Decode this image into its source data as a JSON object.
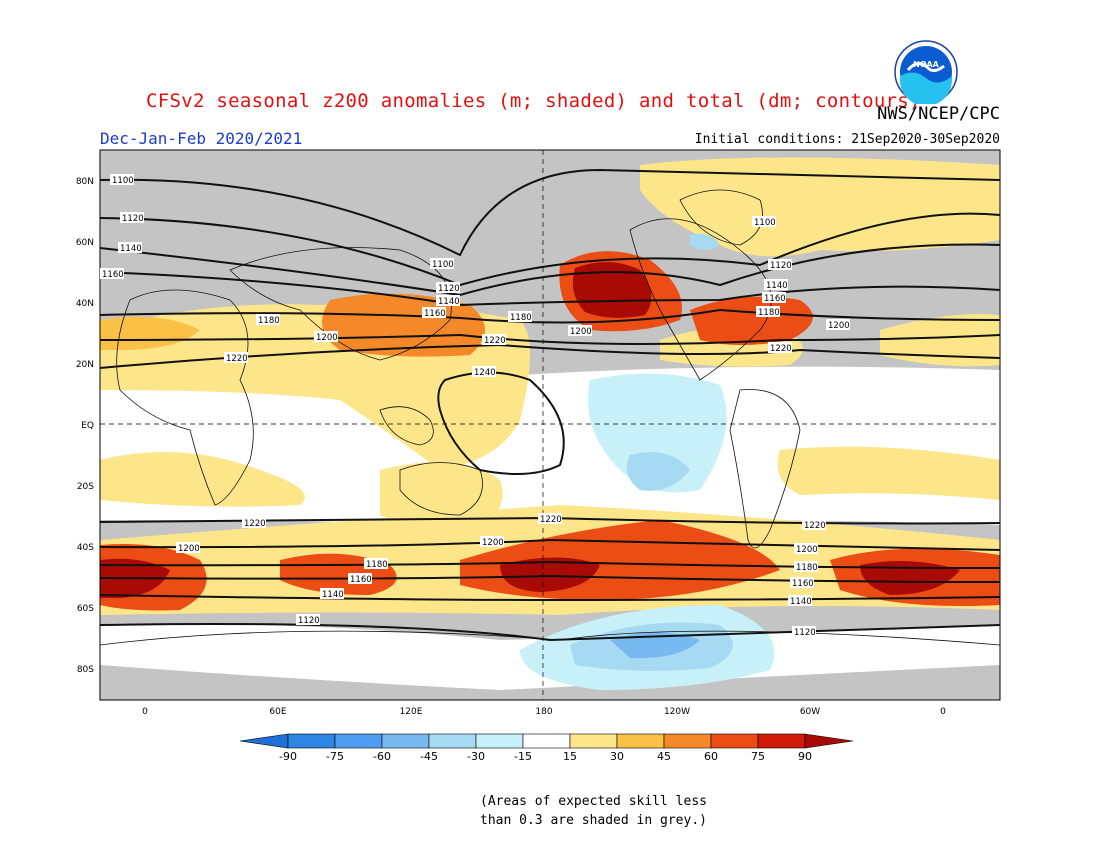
{
  "header": {
    "title": "CFSv2 seasonal z200 anomalies (m; shaded) and total (dm; contours)",
    "agency": "NWS/NCEP/CPC",
    "season": "Dec-Jan-Feb 2020/2021",
    "initial_conditions": "Initial conditions: 21Sep2020-30Sep2020"
  },
  "logo": {
    "text": "NOAA",
    "icon": "noaa-logo"
  },
  "map": {
    "lat_labels": [
      "80N",
      "60N",
      "40N",
      "20N",
      "EQ",
      "20S",
      "40S",
      "60S",
      "80S"
    ],
    "lon_labels": [
      "0",
      "60E",
      "120E",
      "180",
      "120W",
      "60W",
      "0"
    ],
    "contours": [
      {
        "label": "1100"
      },
      {
        "label": "1120"
      },
      {
        "label": "1140"
      },
      {
        "label": "1160"
      },
      {
        "label": "1180"
      },
      {
        "label": "1200"
      },
      {
        "label": "1220"
      },
      {
        "label": "1240"
      }
    ]
  },
  "colorbar": {
    "ticks": [
      "-90",
      "-75",
      "-60",
      "-45",
      "-30",
      "-15",
      "15",
      "30",
      "45",
      "60",
      "75",
      "90"
    ],
    "colors": [
      "#1f6fd8",
      "#2f85e4",
      "#4f9df0",
      "#78b9f2",
      "#a6d9f2",
      "#c8f0f8",
      "#ffffff",
      "#fde68a",
      "#fbc046",
      "#f5892a",
      "#ec4d15",
      "#d11a0a",
      "#a80a06"
    ]
  },
  "note": {
    "line1": "(Areas of expected skill less",
    "line2": "than 0.3 are shaded in grey.)"
  },
  "colors": {
    "title": "#e01010",
    "season": "#1c3ccc",
    "grey_skill": "#c4c4c4"
  }
}
